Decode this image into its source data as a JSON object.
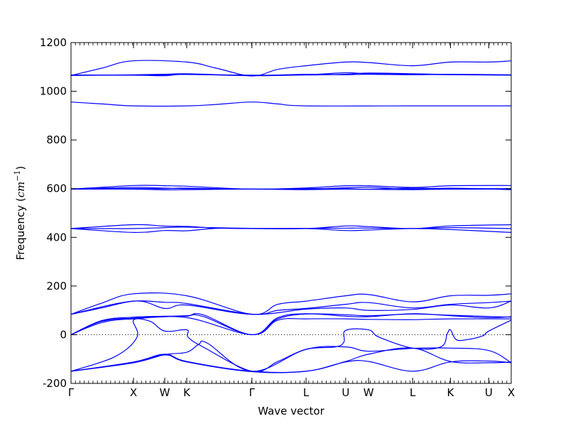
{
  "chart_data": {
    "type": "line",
    "title": "",
    "xlabel": "Wave vector",
    "ylabel": "Frequency (cm⁻¹)",
    "ylabel_parts": {
      "lead": "Frequency (",
      "unit": "cm",
      "exp": "−1",
      "tail": ")"
    },
    "ylim": [
      -200,
      1200
    ],
    "yticks": [
      -200,
      0,
      200,
      400,
      600,
      800,
      1000,
      1200
    ],
    "xlim": [
      0,
      1
    ],
    "xticks": [
      {
        "label": "Γ",
        "x": 0.0
      },
      {
        "label": "X",
        "x": 0.142
      },
      {
        "label": "W",
        "x": 0.213
      },
      {
        "label": "K",
        "x": 0.263
      },
      {
        "label": "Γ",
        "x": 0.411
      },
      {
        "label": "L",
        "x": 0.534
      },
      {
        "label": "U",
        "x": 0.624
      },
      {
        "label": "W",
        "x": 0.676
      },
      {
        "label": "L",
        "x": 0.776
      },
      {
        "label": "K",
        "x": 0.862
      },
      {
        "label": "U",
        "x": 0.949
      },
      {
        "label": "X",
        "x": 1.0
      }
    ],
    "zero_line": true,
    "series": [
      {
        "points": [
          [
            0,
            1065
          ],
          [
            0.07,
            1095
          ],
          [
            0.14,
            1125
          ],
          [
            0.263,
            1120
          ],
          [
            0.33,
            1095
          ],
          [
            0.411,
            1063
          ],
          [
            0.47,
            1090
          ],
          [
            0.534,
            1105
          ],
          [
            0.624,
            1120
          ],
          [
            0.676,
            1118
          ],
          [
            0.776,
            1105
          ],
          [
            0.862,
            1120
          ],
          [
            0.949,
            1120
          ],
          [
            1,
            1125
          ]
        ]
      },
      {
        "points": [
          [
            0,
            1065
          ],
          [
            0.142,
            1068
          ],
          [
            0.213,
            1070
          ],
          [
            0.263,
            1072
          ],
          [
            0.411,
            1065
          ],
          [
            0.534,
            1070
          ],
          [
            0.624,
            1068
          ],
          [
            0.676,
            1070
          ],
          [
            0.776,
            1068
          ],
          [
            0.862,
            1070
          ],
          [
            1,
            1068
          ]
        ]
      },
      {
        "points": [
          [
            0,
            1066
          ],
          [
            0.142,
            1066
          ],
          [
            0.213,
            1064
          ],
          [
            0.263,
            1070
          ],
          [
            0.411,
            1064
          ],
          [
            0.534,
            1068
          ],
          [
            0.624,
            1076
          ],
          [
            0.676,
            1072
          ],
          [
            0.776,
            1070
          ],
          [
            0.862,
            1068
          ],
          [
            1,
            1066
          ]
        ]
      },
      {
        "points": [
          [
            0,
            1067
          ],
          [
            0.142,
            1067
          ],
          [
            0.213,
            1068
          ],
          [
            0.263,
            1069
          ],
          [
            0.411,
            1066
          ],
          [
            0.534,
            1067
          ],
          [
            0.624,
            1070
          ],
          [
            0.676,
            1075
          ],
          [
            0.776,
            1072
          ],
          [
            0.862,
            1069
          ],
          [
            1,
            1067
          ]
        ]
      },
      {
        "points": [
          [
            0,
            956
          ],
          [
            0.07,
            948
          ],
          [
            0.142,
            940
          ],
          [
            0.263,
            940
          ],
          [
            0.33,
            946
          ],
          [
            0.411,
            956
          ],
          [
            0.47,
            948
          ],
          [
            0.534,
            940
          ],
          [
            0.776,
            940
          ],
          [
            0.862,
            940
          ],
          [
            1,
            940
          ]
        ]
      },
      {
        "points": [
          [
            0,
            598
          ],
          [
            0.142,
            613
          ],
          [
            0.213,
            612
          ],
          [
            0.263,
            610
          ],
          [
            0.411,
            598
          ],
          [
            0.534,
            603
          ],
          [
            0.624,
            612
          ],
          [
            0.676,
            612
          ],
          [
            0.776,
            605
          ],
          [
            0.862,
            612
          ],
          [
            1,
            613
          ]
        ]
      },
      {
        "points": [
          [
            0,
            598
          ],
          [
            0.142,
            605
          ],
          [
            0.213,
            602
          ],
          [
            0.263,
            600
          ],
          [
            0.411,
            598
          ],
          [
            0.534,
            600
          ],
          [
            0.624,
            600
          ],
          [
            0.676,
            598
          ],
          [
            0.776,
            602
          ],
          [
            0.862,
            600
          ],
          [
            1,
            600
          ]
        ]
      },
      {
        "points": [
          [
            0,
            598
          ],
          [
            0.142,
            598
          ],
          [
            0.213,
            595
          ],
          [
            0.263,
            596
          ],
          [
            0.411,
            598
          ],
          [
            0.534,
            596
          ],
          [
            0.624,
            598
          ],
          [
            0.676,
            597
          ],
          [
            0.776,
            596
          ],
          [
            0.862,
            598
          ],
          [
            1,
            598
          ]
        ]
      },
      {
        "points": [
          [
            0,
            598
          ],
          [
            0.142,
            600
          ],
          [
            0.213,
            600
          ],
          [
            0.263,
            602
          ],
          [
            0.411,
            598
          ],
          [
            0.534,
            598
          ],
          [
            0.624,
            604
          ],
          [
            0.676,
            606
          ],
          [
            0.776,
            598
          ],
          [
            0.862,
            602
          ],
          [
            1,
            596
          ]
        ]
      },
      {
        "points": [
          [
            0,
            436
          ],
          [
            0.142,
            452
          ],
          [
            0.213,
            446
          ],
          [
            0.263,
            445
          ],
          [
            0.33,
            438
          ],
          [
            0.411,
            436
          ],
          [
            0.534,
            436
          ],
          [
            0.624,
            447
          ],
          [
            0.676,
            444
          ],
          [
            0.776,
            436
          ],
          [
            0.862,
            447
          ],
          [
            1,
            452
          ]
        ]
      },
      {
        "points": [
          [
            0,
            436
          ],
          [
            0.142,
            420
          ],
          [
            0.213,
            428
          ],
          [
            0.263,
            427
          ],
          [
            0.33,
            437
          ],
          [
            0.411,
            436
          ],
          [
            0.534,
            436
          ],
          [
            0.624,
            428
          ],
          [
            0.676,
            430
          ],
          [
            0.776,
            436
          ],
          [
            0.862,
            432
          ],
          [
            1,
            420
          ]
        ]
      },
      {
        "points": [
          [
            0,
            436
          ],
          [
            0.142,
            436
          ],
          [
            0.213,
            440
          ],
          [
            0.263,
            442
          ],
          [
            0.411,
            437
          ],
          [
            0.534,
            437
          ],
          [
            0.624,
            438
          ],
          [
            0.676,
            438
          ],
          [
            0.776,
            436
          ],
          [
            0.862,
            440
          ],
          [
            1,
            436
          ]
        ]
      },
      {
        "points": [
          [
            0,
            84
          ],
          [
            0.07,
            130
          ],
          [
            0.142,
            168
          ],
          [
            0.263,
            160
          ],
          [
            0.411,
            84
          ],
          [
            0.47,
            125
          ],
          [
            0.534,
            138
          ],
          [
            0.624,
            160
          ],
          [
            0.676,
            165
          ],
          [
            0.776,
            135
          ],
          [
            0.862,
            160
          ],
          [
            0.949,
            162
          ],
          [
            1,
            168
          ]
        ]
      },
      {
        "points": [
          [
            0,
            84
          ],
          [
            0.07,
            110
          ],
          [
            0.142,
            138
          ],
          [
            0.213,
            133
          ],
          [
            0.263,
            128
          ],
          [
            0.411,
            84
          ],
          [
            0.47,
            100
          ],
          [
            0.534,
            108
          ],
          [
            0.624,
            125
          ],
          [
            0.676,
            132
          ],
          [
            0.776,
            110
          ],
          [
            0.862,
            125
          ],
          [
            0.949,
            132
          ],
          [
            1,
            138
          ]
        ]
      },
      {
        "points": [
          [
            0,
            84
          ],
          [
            0.142,
            138
          ],
          [
            0.213,
            108
          ],
          [
            0.263,
            122
          ],
          [
            0.411,
            84
          ],
          [
            0.534,
            105
          ],
          [
            0.624,
            110
          ],
          [
            0.676,
            100
          ],
          [
            0.776,
            104
          ],
          [
            0.862,
            122
          ],
          [
            0.949,
            110
          ],
          [
            1,
            138
          ]
        ]
      },
      {
        "points": [
          [
            0,
            0
          ],
          [
            0.07,
            50
          ],
          [
            0.142,
            65
          ],
          [
            0.263,
            70
          ],
          [
            0.411,
            0
          ],
          [
            0.47,
            60
          ],
          [
            0.534,
            65
          ],
          [
            0.624,
            65
          ],
          [
            0.676,
            63
          ],
          [
            0.776,
            62
          ],
          [
            0.862,
            65
          ],
          [
            1,
            65
          ]
        ]
      },
      {
        "points": [
          [
            0,
            0
          ],
          [
            0.07,
            55
          ],
          [
            0.142,
            68
          ],
          [
            0.213,
            74
          ],
          [
            0.263,
            78
          ],
          [
            0.3,
            75
          ],
          [
            0.411,
            0
          ],
          [
            0.47,
            65
          ],
          [
            0.534,
            85
          ],
          [
            0.624,
            82
          ],
          [
            0.676,
            78
          ],
          [
            0.776,
            85
          ],
          [
            0.862,
            80
          ],
          [
            0.949,
            75
          ],
          [
            1,
            72
          ]
        ]
      },
      {
        "points": [
          [
            0,
            0
          ],
          [
            0.07,
            58
          ],
          [
            0.142,
            72
          ],
          [
            0.213,
            76
          ],
          [
            0.263,
            76
          ],
          [
            0.3,
            82
          ],
          [
            0.411,
            0
          ],
          [
            0.47,
            70
          ],
          [
            0.534,
            86
          ],
          [
            0.624,
            76
          ],
          [
            0.676,
            74
          ],
          [
            0.776,
            86
          ],
          [
            0.862,
            78
          ],
          [
            0.949,
            70
          ],
          [
            1,
            74
          ]
        ]
      },
      {
        "points": [
          [
            0,
            -150
          ],
          [
            0.1,
            -90
          ],
          [
            0.15,
            -10
          ],
          [
            0.142,
            60
          ],
          [
            0.18,
            55
          ],
          [
            0.213,
            15
          ],
          [
            0.263,
            20
          ],
          [
            0.266,
            -10
          ],
          [
            0.3,
            -50
          ],
          [
            0.411,
            -150
          ],
          [
            0.47,
            -110
          ],
          [
            0.534,
            -60
          ],
          [
            0.6,
            -50
          ],
          [
            0.62,
            -30
          ],
          [
            0.624,
            18
          ],
          [
            0.676,
            20
          ],
          [
            0.7,
            -10
          ],
          [
            0.776,
            -55
          ],
          [
            0.84,
            -50
          ],
          [
            0.855,
            5
          ],
          [
            0.862,
            20
          ],
          [
            0.875,
            -20
          ],
          [
            0.9,
            -20
          ],
          [
            0.935,
            -5
          ],
          [
            0.949,
            15
          ],
          [
            1,
            60
          ]
        ]
      },
      {
        "points": [
          [
            0,
            -150
          ],
          [
            0.142,
            -115
          ],
          [
            0.213,
            -82
          ],
          [
            0.263,
            -72
          ],
          [
            0.29,
            -40
          ],
          [
            0.31,
            -35
          ],
          [
            0.411,
            -150
          ],
          [
            0.534,
            -60
          ],
          [
            0.624,
            -50
          ],
          [
            0.676,
            -68
          ],
          [
            0.776,
            -56
          ],
          [
            0.862,
            -55
          ],
          [
            0.949,
            -65
          ],
          [
            1,
            -115
          ]
        ]
      },
      {
        "points": [
          [
            0,
            -150
          ],
          [
            0.142,
            -112
          ],
          [
            0.213,
            -80
          ],
          [
            0.263,
            -110
          ],
          [
            0.411,
            -150
          ],
          [
            0.534,
            -150
          ],
          [
            0.624,
            -110
          ],
          [
            0.676,
            -80
          ],
          [
            0.776,
            -55
          ],
          [
            0.862,
            -110
          ],
          [
            0.949,
            -115
          ],
          [
            1,
            -112
          ]
        ]
      },
      {
        "points": [
          [
            0,
            -150
          ],
          [
            0.142,
            -115
          ],
          [
            0.213,
            -83
          ],
          [
            0.263,
            -112
          ],
          [
            0.411,
            -152
          ],
          [
            0.534,
            -150
          ],
          [
            0.624,
            -112
          ],
          [
            0.676,
            -110
          ],
          [
            0.776,
            -150
          ],
          [
            0.862,
            -112
          ],
          [
            0.949,
            -108
          ],
          [
            1,
            -115
          ]
        ]
      }
    ]
  }
}
